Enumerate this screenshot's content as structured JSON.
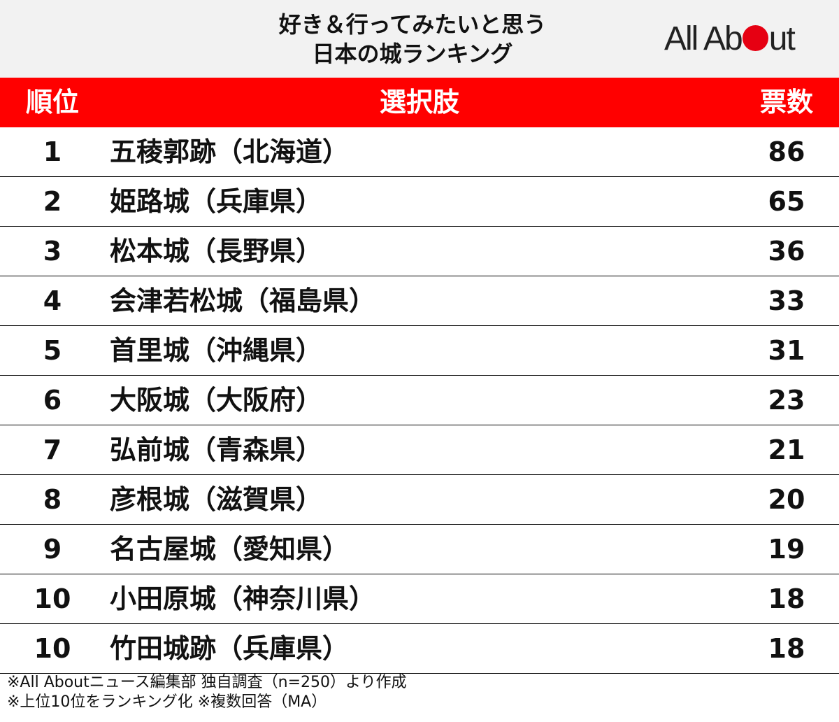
{
  "header": {
    "title_line1": "好き＆行ってみたいと思う",
    "title_line2": "日本の城ランキング",
    "logo": {
      "before": "All Ab",
      "after": "ut",
      "dot_color": "#e60012"
    }
  },
  "table": {
    "columns": {
      "rank": "順位",
      "choice": "選択肢",
      "votes": "票数"
    },
    "header_color": "#ff0000",
    "rows": [
      {
        "rank": "1",
        "choice": "五稜郭跡（北海道）",
        "votes": "86"
      },
      {
        "rank": "2",
        "choice": "姫路城（兵庫県）",
        "votes": "65"
      },
      {
        "rank": "3",
        "choice": "松本城（長野県）",
        "votes": "36"
      },
      {
        "rank": "4",
        "choice": "会津若松城（福島県）",
        "votes": "33"
      },
      {
        "rank": "5",
        "choice": "首里城（沖縄県）",
        "votes": "31"
      },
      {
        "rank": "6",
        "choice": "大阪城（大阪府）",
        "votes": "23"
      },
      {
        "rank": "7",
        "choice": "弘前城（青森県）",
        "votes": "21"
      },
      {
        "rank": "8",
        "choice": "彦根城（滋賀県）",
        "votes": "20"
      },
      {
        "rank": "9",
        "choice": "名古屋城（愛知県）",
        "votes": "19"
      },
      {
        "rank": "10",
        "choice": "小田原城（神奈川県）",
        "votes": "18"
      },
      {
        "rank": "10",
        "choice": "竹田城跡（兵庫県）",
        "votes": "18"
      }
    ]
  },
  "footnotes": {
    "line1": "※All Aboutニュース編集部 独自調査（n=250）より作成",
    "line2": "※上位10位をランキング化 ※複数回答（MA）"
  }
}
